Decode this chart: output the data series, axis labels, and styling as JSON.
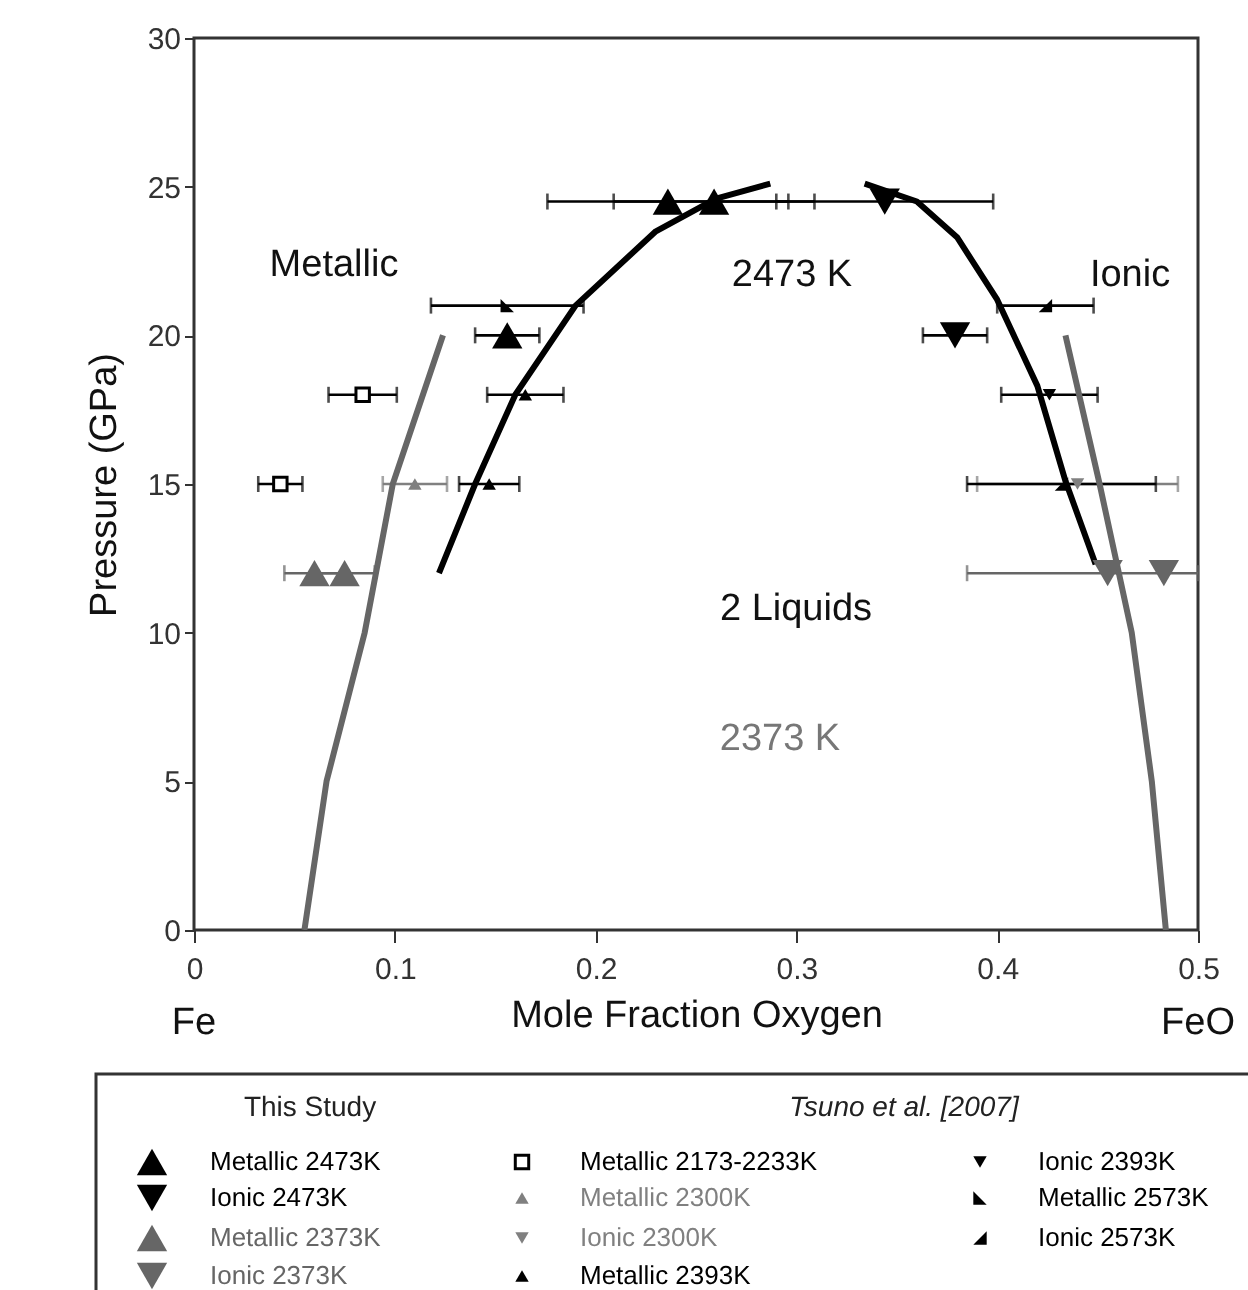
{
  "chart_data": {
    "type": "scatter",
    "xlabel": "Mole Fraction Oxygen",
    "ylabel": "Pressure (GPa)",
    "xlim": [
      0,
      0.5
    ],
    "ylim": [
      0,
      30
    ],
    "xticks": [
      0,
      0.1,
      0.2,
      0.3,
      0.4,
      0.5
    ],
    "yticks": [
      0,
      5,
      10,
      15,
      20,
      25,
      30
    ],
    "grid": false,
    "legend": "bottom",
    "series": [
      {
        "name": "Metallic 2473K",
        "color": "#000000",
        "marker": "triangle-up",
        "x": [
          0.156,
          0.236,
          0.259
        ],
        "values": [
          20,
          24.5,
          24.5
        ],
        "xerrors": [
          0.016,
          0.06,
          0.05
        ]
      },
      {
        "name": "Ionic 2473K",
        "color": "#000000",
        "marker": "triangle-down",
        "x": [
          0.344,
          0.379
        ],
        "values": [
          24.5,
          20
        ],
        "xerrors": [
          0.054,
          0.016
        ]
      },
      {
        "name": "Metallic 2373K",
        "color": "#666666",
        "marker": "triangle-up",
        "x": [
          0.06,
          0.075
        ],
        "values": [
          12,
          12
        ],
        "xerrors": [
          0.015,
          0.015
        ]
      },
      {
        "name": "Ionic 2373K",
        "color": "#666666",
        "marker": "triangle-down",
        "x": [
          0.455,
          0.483
        ],
        "values": [
          12,
          12
        ],
        "xerrors": [
          [
            0.385,
            0.5
          ],
          null
        ]
      },
      {
        "name": "Metallic 2173-2233K",
        "color": "#000000",
        "marker": "square",
        "x": [
          0.043,
          0.084
        ],
        "values": [
          15,
          18
        ],
        "xerrors": [
          0.011,
          0.017
        ]
      },
      {
        "name": "Metallic 2300K",
        "color": "#808080",
        "marker": "triangle-up",
        "x": [
          0.11
        ],
        "values": [
          15
        ],
        "xerrors": [
          0.016
        ]
      },
      {
        "name": "Ionic 2300K",
        "color": "#808080",
        "marker": "triangle-down",
        "x": [
          0.44
        ],
        "values": [
          15
        ],
        "xerrors": [
          0.05
        ]
      },
      {
        "name": "Metallic 2393K",
        "color": "#000000",
        "marker": "triangle-up",
        "x": [
          0.147,
          0.165
        ],
        "values": [
          15,
          18
        ],
        "xerrors": [
          0.015,
          0.019
        ]
      },
      {
        "name": "Ionic 2393K",
        "color": "#000000",
        "marker": "triangle-down",
        "x": [
          0.426
        ],
        "values": [
          18
        ],
        "xerrors": [
          0.024
        ]
      },
      {
        "name": "Metallic 2573K",
        "color": "#000000",
        "marker": "triangle-right",
        "x": [
          0.156
        ],
        "values": [
          21
        ],
        "xerrors": [
          0.038
        ]
      },
      {
        "name": "Ionic 2573K",
        "color": "#000000",
        "marker": "triangle-left",
        "x": [
          0.424,
          0.432
        ],
        "values": [
          21,
          15
        ],
        "xerrors": [
          0.024,
          0.047
        ]
      },
      {
        "type": "line",
        "color": "#000000",
        "x": [
          0.122,
          0.14,
          0.16,
          0.19,
          0.23,
          0.26,
          0.287
        ],
        "values": [
          12,
          15,
          18,
          21,
          23.5,
          24.6,
          25.1
        ]
      },
      {
        "type": "line",
        "color": "#000000",
        "x": [
          0.334,
          0.36,
          0.38,
          0.4,
          0.42,
          0.434,
          0.449
        ],
        "values": [
          25.1,
          24.5,
          23.3,
          21.2,
          18.3,
          15.1,
          12.3
        ]
      },
      {
        "type": "line",
        "color": "#666666",
        "x": [
          0.055,
          0.066,
          0.085,
          0.099,
          0.124
        ],
        "values": [
          0,
          5,
          10,
          15,
          20
        ]
      },
      {
        "type": "line",
        "color": "#666666",
        "x": [
          0.434,
          0.451,
          0.467,
          0.477,
          0.484
        ],
        "values": [
          20,
          15,
          10,
          5,
          0
        ]
      }
    ],
    "annotations": [
      "Metallic",
      "Ionic",
      "2473 K",
      "2 Liquids",
      "2373 K",
      "Fe",
      "FeO",
      "This Study",
      "Tsuno et al. [2007]"
    ]
  }
}
